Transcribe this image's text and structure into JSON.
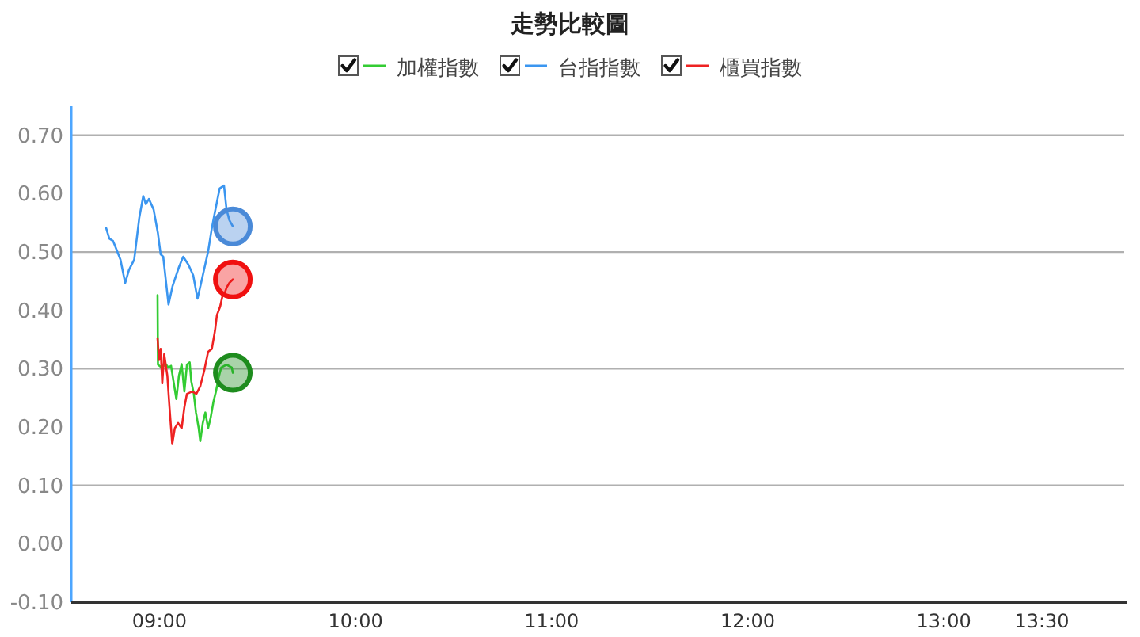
{
  "chart_data": {
    "type": "line",
    "title": "走勢比較圖",
    "xlim": [
      8.55,
      13.92
    ],
    "xticks": [
      {
        "value": 9,
        "label": "09:00"
      },
      {
        "value": 10,
        "label": "10:00"
      },
      {
        "value": 11,
        "label": "11:00"
      },
      {
        "value": 12,
        "label": "12:00"
      },
      {
        "value": 13,
        "label": "13:00"
      },
      {
        "value": 13.5,
        "label": "13:30"
      }
    ],
    "ylim": [
      -0.1,
      0.75
    ],
    "yticks": [
      {
        "value": -0.1,
        "label": "-0.10"
      },
      {
        "value": 0,
        "label": "0.00"
      },
      {
        "value": 0.1,
        "label": "0.10"
      },
      {
        "value": 0.2,
        "label": "0.20"
      },
      {
        "value": 0.3,
        "label": "0.30"
      },
      {
        "value": 0.4,
        "label": "0.40"
      },
      {
        "value": 0.5,
        "label": "0.50"
      },
      {
        "value": 0.6,
        "label": "0.60"
      },
      {
        "value": 0.7,
        "label": "0.70"
      }
    ],
    "grid": "y",
    "legend": "top",
    "series": [
      {
        "name": "加權指數",
        "color": "#33cc33",
        "x": [
          8.99,
          8.992,
          9.011,
          9.032,
          9.046,
          9.059,
          9.073,
          9.086,
          9.099,
          9.113,
          9.127,
          9.14,
          9.154,
          9.162,
          9.175,
          9.186,
          9.2,
          9.208,
          9.221,
          9.234,
          9.248,
          9.261,
          9.275,
          9.288,
          9.301,
          9.315,
          9.342,
          9.369,
          9.374
        ],
        "values": [
          0.426,
          0.307,
          0.302,
          0.308,
          0.302,
          0.305,
          0.275,
          0.248,
          0.288,
          0.308,
          0.261,
          0.307,
          0.311,
          0.279,
          0.257,
          0.225,
          0.198,
          0.176,
          0.207,
          0.225,
          0.198,
          0.216,
          0.243,
          0.261,
          0.284,
          0.302,
          0.307,
          0.302,
          0.293
        ]
      },
      {
        "name": "台指指數",
        "color": "#3b96f0",
        "x": [
          8.728,
          8.744,
          8.763,
          8.774,
          8.801,
          8.825,
          8.844,
          8.871,
          8.897,
          8.917,
          8.93,
          8.946,
          8.97,
          8.992,
          9.006,
          9.019,
          9.046,
          9.067,
          9.099,
          9.121,
          9.148,
          9.172,
          9.194,
          9.221,
          9.248,
          9.267,
          9.283,
          9.307,
          9.329,
          9.342,
          9.356,
          9.374
        ],
        "values": [
          0.541,
          0.523,
          0.519,
          0.51,
          0.487,
          0.447,
          0.469,
          0.487,
          0.559,
          0.596,
          0.582,
          0.591,
          0.573,
          0.532,
          0.496,
          0.492,
          0.41,
          0.442,
          0.474,
          0.492,
          0.478,
          0.46,
          0.42,
          0.46,
          0.501,
          0.541,
          0.569,
          0.609,
          0.614,
          0.573,
          0.555,
          0.544
        ]
      },
      {
        "name": "櫃買指數",
        "color": "#ee2222",
        "x": [
          8.99,
          8.998,
          9.006,
          9.014,
          9.024,
          9.04,
          9.051,
          9.065,
          9.078,
          9.095,
          9.113,
          9.127,
          9.14,
          9.167,
          9.188,
          9.208,
          9.229,
          9.248,
          9.267,
          9.283,
          9.293,
          9.309,
          9.321,
          9.331,
          9.342,
          9.356,
          9.374
        ],
        "values": [
          0.352,
          0.315,
          0.334,
          0.275,
          0.325,
          0.288,
          0.234,
          0.171,
          0.198,
          0.207,
          0.198,
          0.234,
          0.257,
          0.261,
          0.257,
          0.27,
          0.298,
          0.329,
          0.334,
          0.365,
          0.392,
          0.406,
          0.424,
          0.428,
          0.439,
          0.447,
          0.453
        ]
      },
      {
        "type": "scatter",
        "marker": "circle",
        "color": "#1e8c1e",
        "x": [
          9.374
        ],
        "values": [
          0.293
        ]
      },
      {
        "type": "scatter",
        "marker": "circle",
        "color": "#4a8ad8",
        "x": [
          9.374
        ],
        "values": [
          0.544
        ]
      },
      {
        "type": "scatter",
        "marker": "circle",
        "color": "#f01010",
        "x": [
          9.374
        ],
        "values": [
          0.453
        ]
      }
    ]
  }
}
